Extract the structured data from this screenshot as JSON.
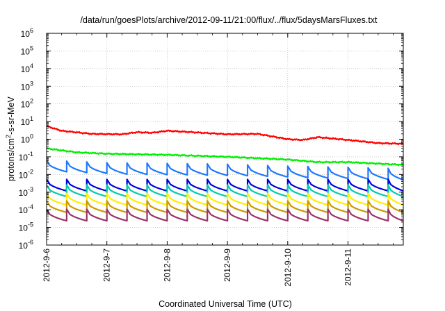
{
  "chart_data": {
    "type": "line",
    "title": "/data/run/goesPlots/archive/2012-09-11/21:00/flux/../flux/5daysMarsFluxes.txt",
    "xlabel": "Coordinated Universal Time (UTC)",
    "ylabel": "protons/cm2-s-sr-MeV",
    "ylabel_parts": {
      "base": "protons/cm",
      "sup": "2",
      "rest": "-s-sr-MeV"
    },
    "yscale": "log",
    "ylim": [
      1e-06,
      1000000.0
    ],
    "y_tick_exponents": [
      -6,
      -5,
      -4,
      -3,
      -2,
      -1,
      0,
      1,
      2,
      3,
      4,
      5,
      6
    ],
    "y_tick_base": "10",
    "xlim": [
      "2012-09-06T00:00",
      "2012-09-11T22:00"
    ],
    "x_ticks": [
      "2012-9-6",
      "2012-9-7",
      "2012-9-8",
      "2012-9-9",
      "2012-9-10",
      "2012-9-11"
    ],
    "x_tick_dates": [
      "2012-09-06",
      "2012-09-07",
      "2012-09-08",
      "2012-09-09",
      "2012-09-10",
      "2012-09-11"
    ],
    "grid": true,
    "series": [
      {
        "color": "#ff0000",
        "style": "trend",
        "points": [
          [
            "2012-09-06T00:00",
            5.5
          ],
          [
            "2012-09-06T06:00",
            3.0
          ],
          [
            "2012-09-06T18:00",
            2.0
          ],
          [
            "2012-09-07T06:00",
            1.9
          ],
          [
            "2012-09-07T12:00",
            2.5
          ],
          [
            "2012-09-07T18:00",
            2.3
          ],
          [
            "2012-09-08T00:00",
            3.0
          ],
          [
            "2012-09-08T12:00",
            2.4
          ],
          [
            "2012-09-09T00:00",
            1.9
          ],
          [
            "2012-09-09T12:00",
            2.0
          ],
          [
            "2012-09-10T00:00",
            1.0
          ],
          [
            "2012-09-10T06:00",
            0.9
          ],
          [
            "2012-09-10T12:00",
            1.3
          ],
          [
            "2012-09-11T00:00",
            0.9
          ],
          [
            "2012-09-11T12:00",
            0.6
          ],
          [
            "2012-09-11T22:00",
            0.55
          ]
        ]
      },
      {
        "color": "#00ee00",
        "style": "trend",
        "points": [
          [
            "2012-09-06T00:00",
            0.3
          ],
          [
            "2012-09-06T12:00",
            0.18
          ],
          [
            "2012-09-07T00:00",
            0.15
          ],
          [
            "2012-09-08T00:00",
            0.13
          ],
          [
            "2012-09-09T00:00",
            0.1
          ],
          [
            "2012-09-10T00:00",
            0.07
          ],
          [
            "2012-09-10T12:00",
            0.05
          ],
          [
            "2012-09-11T00:00",
            0.05
          ],
          [
            "2012-09-11T22:00",
            0.035
          ]
        ]
      },
      {
        "color": "#1e78ff",
        "style": "sawtooth",
        "points": [
          [
            "2012-09-06T00:00",
            0.03
          ],
          [
            "2012-09-07T00:00",
            0.022
          ],
          [
            "2012-09-08T00:00",
            0.02
          ],
          [
            "2012-09-09T00:00",
            0.018
          ],
          [
            "2012-09-10T00:00",
            0.014
          ],
          [
            "2012-09-11T00:00",
            0.012
          ],
          [
            "2012-09-11T22:00",
            0.01
          ]
        ]
      },
      {
        "color": "#0000dd",
        "style": "sawtooth",
        "points": [
          [
            "2012-09-06T00:00",
            0.0025
          ],
          [
            "2012-09-11T22:00",
            0.0025
          ]
        ]
      },
      {
        "color": "#00ccaa",
        "style": "sawtooth",
        "points": [
          [
            "2012-09-06T00:00",
            0.0012
          ],
          [
            "2012-09-11T22:00",
            0.0012
          ]
        ]
      },
      {
        "color": "#ffee00",
        "style": "sawtooth",
        "points": [
          [
            "2012-09-06T00:00",
            0.0004
          ],
          [
            "2012-09-11T22:00",
            0.0004
          ]
        ]
      },
      {
        "color": "#cc9900",
        "style": "sawtooth",
        "points": [
          [
            "2012-09-06T00:00",
            0.00015
          ],
          [
            "2012-09-11T22:00",
            0.00015
          ]
        ]
      },
      {
        "color": "#993366",
        "style": "sawtooth",
        "points": [
          [
            "2012-09-06T00:00",
            5e-05
          ],
          [
            "2012-09-11T22:00",
            5e-05
          ]
        ]
      }
    ]
  }
}
